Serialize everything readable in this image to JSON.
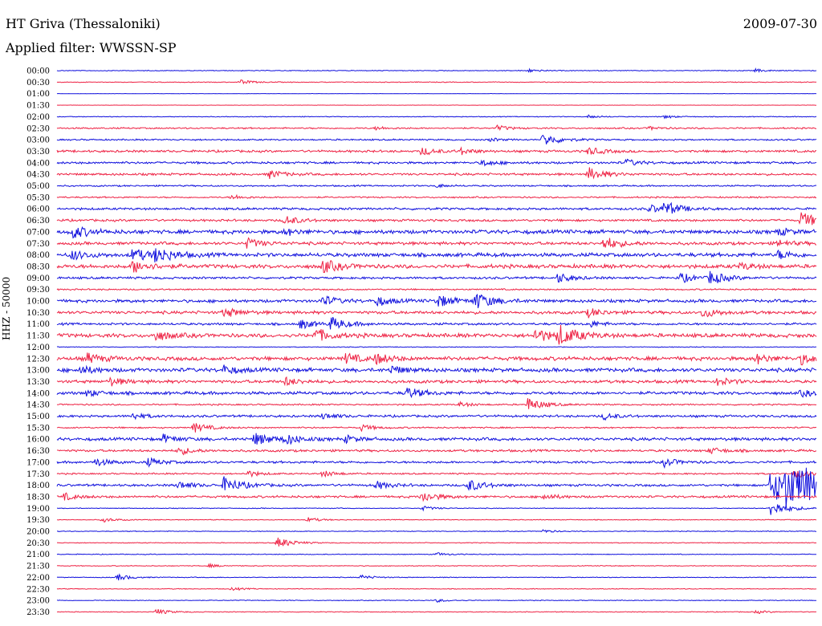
{
  "header": {
    "station": "HT Griva (Thessaloniki)",
    "date": "2009-07-30",
    "filter": "Applied filter: WWSSN-SP"
  },
  "colors": {
    "even_trace": "#1010dd",
    "odd_trace": "#ee2244",
    "background": "#ffffff"
  },
  "chart_data": {
    "type": "line",
    "title": "HT Griva (Thessaloniki)",
    "subtitle": "Applied filter: WWSSN-SP",
    "date": "2009-07-30",
    "ylabel": "HHZ - 50000",
    "xlabel": "",
    "grid": false,
    "legend": "none",
    "categories": [
      "00:00",
      "00:30",
      "01:00",
      "01:30",
      "02:00",
      "02:30",
      "03:00",
      "03:30",
      "04:00",
      "04:30",
      "05:00",
      "05:30",
      "06:00",
      "06:30",
      "07:00",
      "07:30",
      "08:00",
      "08:30",
      "09:00",
      "09:30",
      "10:00",
      "10:30",
      "11:00",
      "11:30",
      "12:00",
      "12:30",
      "13:00",
      "13:30",
      "14:00",
      "14:30",
      "15:00",
      "15:30",
      "16:00",
      "16:30",
      "17:00",
      "17:30",
      "18:00",
      "18:30",
      "19:00",
      "19:30",
      "20:00",
      "20:30",
      "21:00",
      "21:30",
      "22:00",
      "22:30",
      "23:00",
      "23:30"
    ],
    "series": [
      {
        "values": [
          1,
          [
            [
              0.62,
              2
            ],
            [
              0.92,
              2
            ]
          ]
        ]
      },
      {
        "values": [
          1,
          [
            [
              0.24,
              3
            ]
          ]
        ]
      },
      {
        "values": [
          0.4,
          []
        ]
      },
      {
        "values": [
          0.4,
          []
        ]
      },
      {
        "values": [
          1,
          [
            [
              0.7,
              2
            ],
            [
              0.8,
              2
            ]
          ]
        ]
      },
      {
        "values": [
          2,
          [
            [
              0.42,
              2
            ],
            [
              0.58,
              3
            ],
            [
              0.78,
              2
            ]
          ]
        ]
      },
      {
        "values": [
          2,
          [
            [
              0.64,
              8
            ],
            [
              0.57,
              2
            ]
          ]
        ]
      },
      {
        "values": [
          3,
          [
            [
              0.48,
              5
            ],
            [
              0.53,
              4
            ],
            [
              0.7,
              5
            ]
          ]
        ]
      },
      {
        "values": [
          3,
          [
            [
              0.56,
              4
            ],
            [
              0.75,
              4
            ]
          ]
        ]
      },
      {
        "values": [
          3,
          [
            [
              0.28,
              5
            ],
            [
              0.7,
              8
            ]
          ]
        ]
      },
      {
        "values": [
          2,
          [
            [
              0.5,
              2
            ]
          ]
        ]
      },
      {
        "values": [
          2,
          [
            [
              0.23,
              3
            ]
          ]
        ]
      },
      {
        "values": [
          3,
          [
            [
              0.78,
              5
            ],
            [
              0.8,
              8
            ]
          ]
        ]
      },
      {
        "values": [
          3,
          [
            [
              0.3,
              6
            ],
            [
              0.98,
              10
            ]
          ]
        ]
      },
      {
        "values": [
          5,
          [
            [
              0.02,
              8
            ],
            [
              0.3,
              4
            ],
            [
              0.95,
              4
            ]
          ]
        ]
      },
      {
        "values": [
          4,
          [
            [
              0.25,
              6
            ],
            [
              0.72,
              8
            ],
            [
              0.95,
              4
            ]
          ]
        ]
      },
      {
        "values": [
          5,
          [
            [
              0.02,
              6
            ],
            [
              0.1,
              8
            ],
            [
              0.13,
              9
            ],
            [
              0.95,
              5
            ]
          ]
        ]
      },
      {
        "values": [
          5,
          [
            [
              0.1,
              8
            ],
            [
              0.35,
              8
            ],
            [
              0.9,
              4
            ]
          ]
        ]
      },
      {
        "values": [
          3,
          [
            [
              0.66,
              6
            ],
            [
              0.82,
              6
            ],
            [
              0.86,
              8
            ]
          ]
        ]
      },
      {
        "values": [
          2,
          []
        ]
      },
      {
        "values": [
          4,
          [
            [
              0.35,
              6
            ],
            [
              0.42,
              6
            ],
            [
              0.5,
              8
            ],
            [
              0.55,
              10
            ]
          ]
        ]
      },
      {
        "values": [
          4,
          [
            [
              0.22,
              6
            ],
            [
              0.7,
              5
            ],
            [
              0.85,
              6
            ]
          ]
        ]
      },
      {
        "values": [
          3,
          [
            [
              0.32,
              6
            ],
            [
              0.36,
              8
            ],
            [
              0.7,
              4
            ]
          ]
        ]
      },
      {
        "values": [
          5,
          [
            [
              0.13,
              6
            ],
            [
              0.34,
              8
            ],
            [
              0.63,
              8
            ],
            [
              0.66,
              12
            ]
          ]
        ]
      },
      {
        "values": [
          1,
          []
        ]
      },
      {
        "values": [
          5,
          [
            [
              0.04,
              6
            ],
            [
              0.38,
              6
            ],
            [
              0.42,
              6
            ],
            [
              0.92,
              6
            ],
            [
              0.98,
              6
            ]
          ]
        ]
      },
      {
        "values": [
          5,
          [
            [
              0.03,
              5
            ],
            [
              0.22,
              5
            ],
            [
              0.44,
              5
            ]
          ]
        ]
      },
      {
        "values": [
          4,
          [
            [
              0.07,
              5
            ],
            [
              0.3,
              5
            ],
            [
              0.87,
              5
            ]
          ]
        ]
      },
      {
        "values": [
          4,
          [
            [
              0.04,
              4
            ],
            [
              0.46,
              7
            ],
            [
              0.98,
              4
            ]
          ]
        ]
      },
      {
        "values": [
          2,
          [
            [
              0.53,
              3
            ],
            [
              0.62,
              8
            ]
          ]
        ]
      },
      {
        "values": [
          3,
          [
            [
              0.1,
              4
            ],
            [
              0.35,
              4
            ],
            [
              0.72,
              4
            ]
          ]
        ]
      },
      {
        "values": [
          2,
          [
            [
              0.18,
              6
            ],
            [
              0.4,
              4
            ]
          ]
        ]
      },
      {
        "values": [
          4,
          [
            [
              0.14,
              5
            ],
            [
              0.26,
              8
            ],
            [
              0.3,
              6
            ],
            [
              0.38,
              4
            ]
          ]
        ]
      },
      {
        "values": [
          3,
          [
            [
              0.16,
              5
            ],
            [
              0.86,
              4
            ]
          ]
        ]
      },
      {
        "values": [
          3,
          [
            [
              0.05,
              5
            ],
            [
              0.12,
              5
            ],
            [
              0.8,
              5
            ]
          ]
        ]
      },
      {
        "values": [
          2,
          [
            [
              0.25,
              4
            ],
            [
              0.35,
              4
            ],
            [
              0.97,
              6
            ]
          ]
        ]
      },
      {
        "values": [
          3,
          [
            [
              0.16,
              5
            ],
            [
              0.22,
              10
            ],
            [
              0.42,
              5
            ],
            [
              0.54,
              8
            ],
            [
              0.94,
              22
            ],
            [
              0.96,
              18
            ],
            [
              0.98,
              12
            ]
          ]
        ]
      },
      {
        "values": [
          3,
          [
            [
              0.01,
              4
            ],
            [
              0.48,
              7
            ],
            [
              0.64,
              4
            ]
          ]
        ]
      },
      {
        "values": [
          1,
          [
            [
              0.48,
              3
            ],
            [
              0.94,
              10
            ]
          ]
        ]
      },
      {
        "values": [
          1,
          [
            [
              0.06,
              3
            ],
            [
              0.33,
              3
            ]
          ]
        ]
      },
      {
        "values": [
          1,
          [
            [
              0.64,
              2
            ]
          ]
        ]
      },
      {
        "values": [
          1,
          [
            [
              0.29,
              7
            ]
          ]
        ]
      },
      {
        "values": [
          1,
          [
            [
              0.5,
              2
            ]
          ]
        ]
      },
      {
        "values": [
          1,
          [
            [
              0.2,
              2
            ]
          ]
        ]
      },
      {
        "values": [
          1,
          [
            [
              0.08,
              4
            ],
            [
              0.4,
              3
            ]
          ]
        ]
      },
      {
        "values": [
          1,
          [
            [
              0.23,
              2
            ]
          ]
        ]
      },
      {
        "values": [
          1,
          [
            [
              0.5,
              2
            ]
          ]
        ]
      },
      {
        "values": [
          1,
          [
            [
              0.13,
              4
            ],
            [
              0.92,
              2
            ]
          ]
        ]
      }
    ]
  }
}
